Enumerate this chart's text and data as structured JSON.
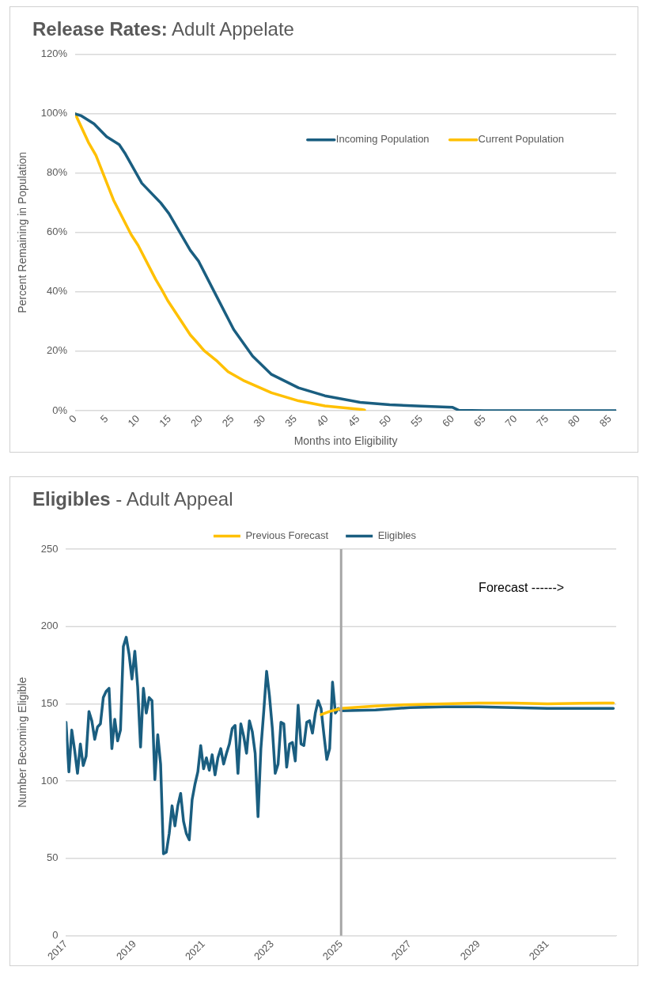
{
  "chart_data": [
    {
      "type": "line",
      "title": "Release Rates:",
      "subtitle": "Adult Appelate",
      "xlabel": "Months into Eligibility",
      "ylabel": "Percent Remaining in Population",
      "xlim": [
        0,
        86
      ],
      "xticks": [
        0,
        5,
        10,
        15,
        20,
        25,
        30,
        35,
        40,
        45,
        50,
        55,
        60,
        65,
        70,
        75,
        80,
        85
      ],
      "ylim": [
        0,
        120
      ],
      "yticks": [
        {
          "value": 0,
          "label": "0%"
        },
        {
          "value": 20,
          "label": "20%"
        },
        {
          "value": 40,
          "label": "40%"
        },
        {
          "value": 60,
          "label": "60%"
        },
        {
          "value": 80,
          "label": "80%"
        },
        {
          "value": 100,
          "label": "100%"
        },
        {
          "value": 120,
          "label": "120%"
        }
      ],
      "grid": "y",
      "legend": "top right",
      "marker": "none",
      "line_style": "solid",
      "series": [
        {
          "name": "Incoming Population",
          "color": "#1a5e80",
          "x": [
            0,
            1,
            3,
            5,
            7,
            8,
            10.6,
            13.6,
            14.9,
            18.3,
            19.6,
            22.6,
            25.2,
            28.2,
            31.2,
            35.5,
            39.7,
            45.3,
            50,
            55,
            60,
            61,
            65,
            70,
            75,
            80,
            86
          ],
          "values": [
            100,
            99.3,
            96.6,
            92.3,
            89.6,
            86.4,
            76.6,
            70,
            66.4,
            54,
            50.4,
            38,
            27.3,
            18.4,
            12.2,
            7.7,
            5,
            2.8,
            2,
            1.5,
            1.1,
            0.1,
            0,
            0,
            0,
            0,
            0
          ]
        },
        {
          "name": "Current Population",
          "color": "#ffc000",
          "x": [
            0,
            2.1,
            3.3,
            6.1,
            8.9,
            10,
            12.8,
            13.8,
            14.7,
            18.3,
            19.4,
            20.5,
            22.6,
            24.3,
            26.9,
            31.2,
            35.5,
            39.7,
            45.5,
            46
          ],
          "values": [
            100,
            90.4,
            86,
            70.9,
            59.3,
            55.7,
            44.2,
            40.6,
            37.1,
            25.5,
            22.9,
            20.2,
            16.6,
            13.1,
            10,
            6,
            3.3,
            1.6,
            0.4,
            0.2
          ]
        }
      ]
    },
    {
      "type": "line",
      "title": "Eligibles",
      "subtitle": "- Adult Appeal",
      "ylabel": "Number Becoming Eligible",
      "xlim": [
        "2017-01",
        "2033-01"
      ],
      "xticks": [
        "2017",
        "2019",
        "2021",
        "2023",
        "2025",
        "2027",
        "2029",
        "2031"
      ],
      "ylim": [
        0,
        250
      ],
      "yticks": [
        0,
        50,
        100,
        150,
        200,
        250
      ],
      "grid": "y",
      "legend": "top",
      "marker": "none",
      "line_style": "solid",
      "ref_lines": [
        {
          "axis": "x",
          "value": "2025-01",
          "color": "#a6a6a6"
        }
      ],
      "annotations": [
        "Forecast ------>"
      ],
      "series": [
        {
          "name": "Previous Forecast",
          "color": "#ffc000",
          "x": [
            "2024-06",
            "2024-09",
            "2025-01",
            "2026-01",
            "2027-01",
            "2028-01",
            "2029-01",
            "2030-01",
            "2031-01",
            "2032-01",
            "2032-12"
          ],
          "values": [
            143,
            145,
            147,
            148.5,
            149.5,
            150,
            150.5,
            150.5,
            150,
            150.3,
            150.5
          ]
        },
        {
          "name": "Eligibles",
          "color": "#1a5e80",
          "x": [
            "2017-01",
            "2017-02",
            "2017-03",
            "2017-04",
            "2017-05",
            "2017-06",
            "2017-07",
            "2017-08",
            "2017-09",
            "2017-10",
            "2017-11",
            "2017-12",
            "2018-01",
            "2018-02",
            "2018-03",
            "2018-04",
            "2018-05",
            "2018-06",
            "2018-07",
            "2018-08",
            "2018-09",
            "2018-10",
            "2018-11",
            "2018-12",
            "2019-01",
            "2019-02",
            "2019-03",
            "2019-04",
            "2019-05",
            "2019-06",
            "2019-07",
            "2019-08",
            "2019-09",
            "2019-10",
            "2019-11",
            "2019-12",
            "2020-01",
            "2020-02",
            "2020-03",
            "2020-04",
            "2020-05",
            "2020-06",
            "2020-07",
            "2020-08",
            "2020-09",
            "2020-10",
            "2020-11",
            "2020-12",
            "2021-01",
            "2021-02",
            "2021-03",
            "2021-04",
            "2021-05",
            "2021-06",
            "2021-07",
            "2021-08",
            "2021-09",
            "2021-10",
            "2021-11",
            "2021-12",
            "2022-01",
            "2022-02",
            "2022-03",
            "2022-04",
            "2022-05",
            "2022-06",
            "2022-07",
            "2022-08",
            "2022-09",
            "2022-10",
            "2022-11",
            "2022-12",
            "2023-01",
            "2023-02",
            "2023-03",
            "2023-04",
            "2023-05",
            "2023-06",
            "2023-07",
            "2023-08",
            "2023-09",
            "2023-10",
            "2023-11",
            "2023-12",
            "2024-01",
            "2024-02",
            "2024-03",
            "2024-04",
            "2024-05",
            "2024-06",
            "2024-07",
            "2024-08",
            "2024-09",
            "2024-10",
            "2024-11",
            "2024-12",
            "2025-01",
            "2026-01",
            "2027-01",
            "2028-01",
            "2029-01",
            "2030-01",
            "2031-01",
            "2032-01",
            "2032-12"
          ],
          "values": [
            138,
            106,
            133,
            120,
            105,
            124,
            110,
            116,
            145,
            139,
            127,
            135,
            137,
            154,
            158,
            160,
            121,
            140,
            126,
            133,
            187,
            193,
            182,
            166,
            184,
            161,
            122,
            160,
            144,
            154,
            152,
            101,
            130,
            111,
            53,
            54,
            66,
            84,
            71,
            84,
            92,
            74,
            66,
            62,
            88,
            98,
            106,
            123,
            108,
            115,
            107,
            117,
            104,
            115,
            121,
            111,
            118,
            124,
            134,
            136,
            105,
            137,
            129,
            118,
            139,
            132,
            118,
            77,
            121,
            145,
            171,
            155,
            134,
            105,
            111,
            138,
            137,
            109,
            124,
            125,
            113,
            149,
            124,
            123,
            138,
            139,
            131,
            144,
            152,
            147,
            130,
            114,
            121,
            164,
            144,
            147,
            145.5,
            146,
            147.5,
            148,
            148,
            147.5,
            147,
            147,
            147
          ]
        }
      ]
    }
  ]
}
